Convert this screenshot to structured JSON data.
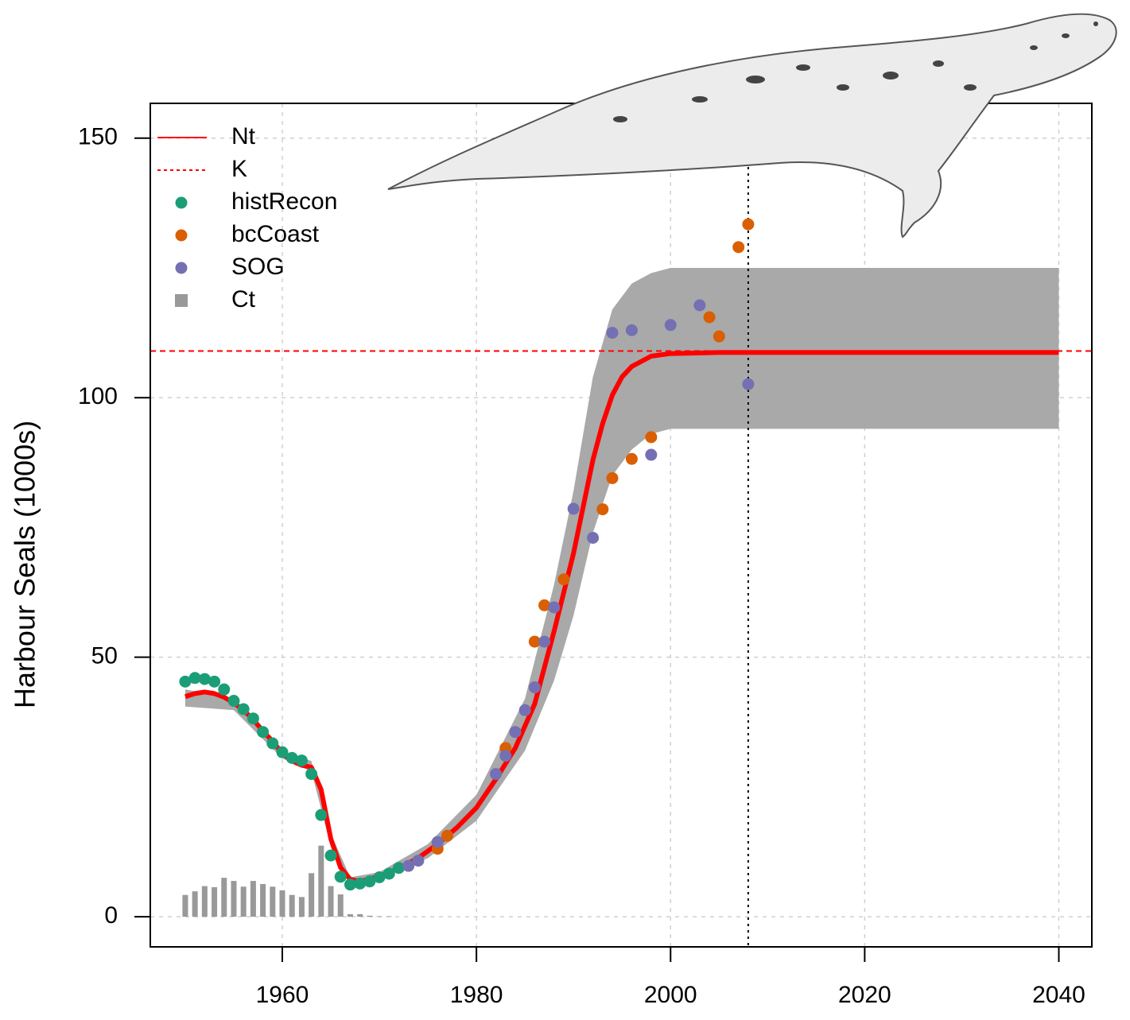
{
  "chart_data": {
    "type": "line",
    "y_label": "Harbour Seals (1000s)",
    "xlim": [
      1946.4,
      2043.4
    ],
    "ylim": [
      -5.8,
      156.7
    ],
    "xticks": [
      1960,
      1980,
      2000,
      2020,
      2040
    ],
    "yticks": [
      0,
      50,
      100,
      150
    ],
    "grid": true,
    "legend": "top-left",
    "vline": 2008,
    "band": {
      "color": "#a9a9a9",
      "x": [
        1950,
        1955,
        1960,
        1963,
        1965,
        1967,
        1970,
        1975,
        1980,
        1985,
        1988,
        1990,
        1992,
        1994,
        1996,
        1998,
        2000,
        2005,
        2040
      ],
      "upper": [
        43.8,
        42,
        32,
        30,
        16,
        7.6,
        8.6,
        14,
        23.5,
        42,
        64,
        82,
        104,
        117,
        122,
        124,
        125,
        125,
        125
      ],
      "lower": [
        40.5,
        39.8,
        30.5,
        28,
        13.5,
        6.5,
        7.2,
        11.3,
        18.5,
        32,
        45.5,
        58,
        74,
        85,
        90,
        93,
        94,
        94,
        94
      ]
    },
    "series": [
      {
        "name": "Nt",
        "kind": "line",
        "color": "#ff0000",
        "x": [
          1950,
          1951,
          1952,
          1953,
          1954,
          1955,
          1956,
          1957,
          1958,
          1959,
          1960,
          1961,
          1962,
          1963,
          1964,
          1965,
          1966,
          1967,
          1968,
          1970,
          1972,
          1974,
          1976,
          1978,
          1980,
          1982,
          1984,
          1986,
          1988,
          1990,
          1991,
          1992,
          1993,
          1994,
          1995,
          1996,
          1998,
          2000,
          2005,
          2040
        ],
        "values": [
          42.4,
          43.0,
          43.3,
          43.0,
          42.3,
          41.2,
          39.8,
          38.0,
          35.8,
          33.8,
          31.5,
          30.0,
          29.2,
          28.8,
          24.5,
          15.0,
          9.5,
          7.2,
          6.8,
          7.8,
          9.3,
          11.3,
          14.0,
          17.2,
          21.0,
          26.5,
          32.5,
          41.0,
          55.0,
          70.0,
          79.0,
          88.0,
          95.0,
          100.5,
          104.0,
          106.0,
          108.0,
          108.5,
          108.7,
          108.7
        ]
      },
      {
        "name": "K",
        "kind": "hline",
        "color": "#ff0000",
        "values": [
          109
        ]
      },
      {
        "name": "histRecon",
        "kind": "points",
        "color": "#1b9e77",
        "x": [
          1950,
          1951,
          1952,
          1953,
          1954,
          1955,
          1956,
          1957,
          1958,
          1959,
          1960,
          1961,
          1962,
          1963,
          1964,
          1965,
          1966,
          1967,
          1968,
          1969,
          1970,
          1971,
          1972
        ],
        "values": [
          45.3,
          46.0,
          45.8,
          45.3,
          43.8,
          41.6,
          40.0,
          38.2,
          35.6,
          33.4,
          31.7,
          30.6,
          30.1,
          27.5,
          19.6,
          11.8,
          7.7,
          6.2,
          6.4,
          6.8,
          7.6,
          8.3,
          9.4
        ]
      },
      {
        "name": "bcCoast",
        "kind": "points",
        "color": "#d95f02",
        "x": [
          1976,
          1977,
          1983,
          1986,
          1987,
          1989,
          1993,
          1994,
          1996,
          1998,
          2004,
          2005,
          2007,
          2008
        ],
        "values": [
          13.1,
          15.6,
          32.5,
          53.0,
          60.0,
          65.0,
          78.5,
          84.5,
          88.2,
          92.4,
          115.5,
          111.8,
          129.0,
          133.4
        ]
      },
      {
        "name": "SOG",
        "kind": "points",
        "color": "#7570b3",
        "x": [
          1973,
          1974,
          1976,
          1982,
          1983,
          1984,
          1985,
          1986,
          1987,
          1988,
          1990,
          1992,
          1994,
          1996,
          1998,
          2000,
          2003,
          2008
        ],
        "values": [
          9.8,
          10.8,
          14.4,
          27.5,
          31.0,
          35.6,
          39.8,
          44.2,
          53.0,
          59.6,
          78.6,
          73.0,
          112.5,
          113.0,
          89.0,
          114.0,
          117.8,
          102.6
        ]
      },
      {
        "name": "Ct",
        "kind": "bar",
        "color": "#999999",
        "x": [
          1950,
          1951,
          1952,
          1953,
          1954,
          1955,
          1956,
          1957,
          1958,
          1959,
          1960,
          1961,
          1962,
          1963,
          1964,
          1965,
          1966,
          1967,
          1968,
          1969,
          1970,
          1971
        ],
        "values": [
          4.2,
          4.9,
          5.9,
          5.7,
          7.5,
          6.9,
          5.8,
          6.9,
          6.3,
          5.8,
          5.1,
          4.2,
          3.8,
          8.4,
          13.7,
          5.9,
          4.3,
          0.5,
          0.5,
          0.2,
          0.1,
          0.1
        ]
      }
    ]
  }
}
